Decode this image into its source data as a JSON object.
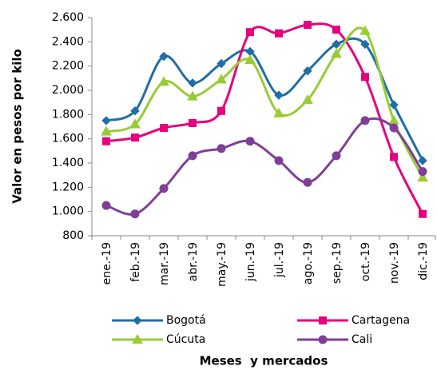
{
  "chart_data": {
    "type": "line",
    "x_label": "Meses  y mercados",
    "y_label": "Valor en pesos por kilo",
    "categories": [
      "ene.-19",
      "feb.-19",
      "mar.-19",
      "abr.-19",
      "may.-19",
      "jun.-19",
      "jul.-19",
      "ago.-19",
      "sep.-19",
      "oct.-19",
      "nov.-19",
      "dic.-19"
    ],
    "series": [
      {
        "name": "Bogotá",
        "color": "#1f6ea6",
        "marker": "diamond",
        "values": [
          1750,
          1830,
          2280,
          2060,
          2220,
          2320,
          1960,
          2160,
          2380,
          2380,
          1880,
          1420
        ]
      },
      {
        "name": "Cartagena",
        "color": "#e6007e",
        "marker": "square",
        "values": [
          1580,
          1610,
          1690,
          1730,
          1830,
          2480,
          2470,
          2540,
          2500,
          2110,
          1450,
          980
        ]
      },
      {
        "name": "Cúcuta",
        "color": "#99cc33",
        "marker": "triangle",
        "values": [
          1660,
          1720,
          2070,
          1950,
          2090,
          2250,
          1810,
          1920,
          2300,
          2490,
          1750,
          1280
        ]
      },
      {
        "name": "Cali",
        "color": "#7f3f98",
        "marker": "circle",
        "values": [
          1050,
          980,
          1190,
          1460,
          1520,
          1580,
          1420,
          1240,
          1460,
          1750,
          1690,
          1330
        ]
      }
    ],
    "ylim": [
      800,
      2600
    ],
    "yticks": [
      {
        "value": 800,
        "label": "800"
      },
      {
        "value": 1000,
        "label": "1.000"
      },
      {
        "value": 1200,
        "label": "1.200"
      },
      {
        "value": 1400,
        "label": "1.400"
      },
      {
        "value": 1600,
        "label": "1.600"
      },
      {
        "value": 1800,
        "label": "1.800"
      },
      {
        "value": 2000,
        "label": "2.000"
      },
      {
        "value": 2200,
        "label": "2.200"
      },
      {
        "value": 2400,
        "label": "2.400"
      },
      {
        "value": 2600,
        "label": "2.600"
      }
    ],
    "legend": "bottom"
  }
}
